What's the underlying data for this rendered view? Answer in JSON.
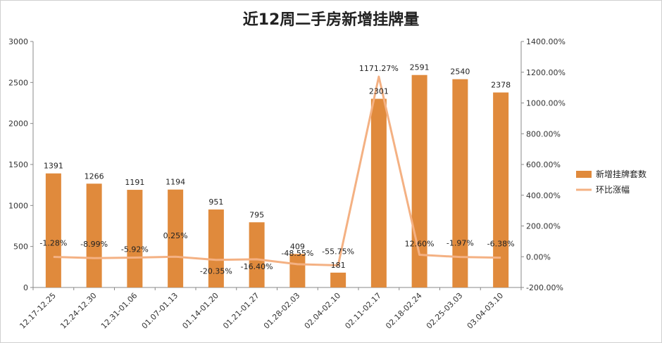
{
  "chart_data": {
    "type": "bar",
    "title": "近12周二手房新增挂牌量",
    "categories": [
      "12.17-12.25",
      "12.24-12.30",
      "12.31-01.06",
      "01.07-01.13",
      "01.14-01.20",
      "01.21-01.27",
      "01.28-02.03",
      "02.04-02.10",
      "02.11-02.17",
      "02.18-02.24",
      "02.25-03.03",
      "03.04-03.10"
    ],
    "series": [
      {
        "name": "新增挂牌套数",
        "type": "bar",
        "axis": "left",
        "color": "#E08A3C",
        "values": [
          1391,
          1266,
          1191,
          1194,
          951,
          795,
          409,
          181,
          2301,
          2591,
          2540,
          2378
        ],
        "labels": [
          "1391",
          "1266",
          "1191",
          "1194",
          "951",
          "795",
          "409",
          "181",
          "2301",
          "2591",
          "2540",
          "2378"
        ]
      },
      {
        "name": "环比涨幅",
        "type": "line",
        "axis": "right",
        "color": "#F4B183",
        "values": [
          -1.28,
          -8.99,
          -5.92,
          0.25,
          -20.35,
          -16.4,
          -48.55,
          -55.75,
          1171.27,
          12.6,
          -1.97,
          -6.38
        ],
        "labels": [
          "-1.28%",
          "-8.99%",
          "-5.92%",
          "0.25%",
          "-20.35%",
          "-16.40%",
          "-48.55%",
          "-55.75%",
          "1171.27%",
          "12.60%",
          "-1.97%",
          "-6.38%"
        ]
      }
    ],
    "y_left": {
      "min": 0,
      "max": 3000,
      "step": 500,
      "ticks": [
        "0",
        "500",
        "1000",
        "1500",
        "2000",
        "2500",
        "3000"
      ]
    },
    "y_right": {
      "min": -200,
      "max": 1400,
      "step": 200,
      "ticks": [
        "-200.00%",
        "0.00%",
        "200.00%",
        "400.00%",
        "600.00%",
        "800.00%",
        "1000.00%",
        "1200.00%",
        "1400.00%"
      ]
    },
    "grid": false,
    "legend_position": "right"
  }
}
